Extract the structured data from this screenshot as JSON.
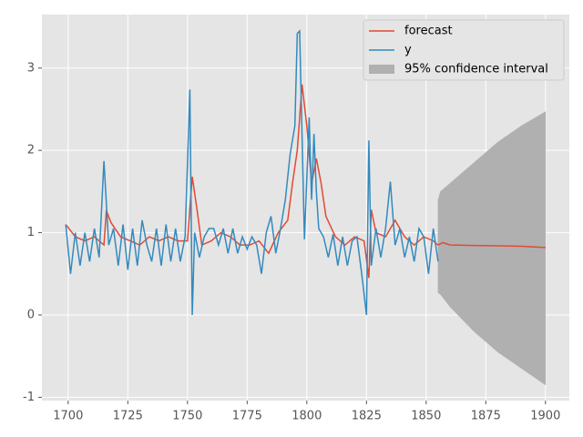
{
  "chart_data": {
    "type": "line",
    "xlim": [
      1689,
      1910
    ],
    "ylim": [
      -1.04,
      3.65
    ],
    "xticks": [
      1700,
      1725,
      1750,
      1775,
      1800,
      1825,
      1850,
      1875,
      1900
    ],
    "yticks": [
      -1,
      0,
      1,
      2,
      3
    ],
    "grid": true,
    "legend": "upper right",
    "series": [
      {
        "name": "forecast",
        "color": "#e24a33",
        "x": [
          1699,
          1703,
          1707,
          1711,
          1715,
          1716,
          1718,
          1722,
          1726,
          1730,
          1734,
          1738,
          1742,
          1746,
          1750,
          1752,
          1754,
          1756,
          1760,
          1764,
          1768,
          1772,
          1776,
          1780,
          1784,
          1788,
          1792,
          1794,
          1796,
          1798,
          1800,
          1802,
          1804,
          1806,
          1808,
          1812,
          1816,
          1820,
          1824,
          1826,
          1827,
          1829,
          1833,
          1837,
          1841,
          1845,
          1849,
          1853,
          1855,
          1857,
          1860,
          1870,
          1880,
          1890,
          1900
        ],
        "values": [
          1.1,
          0.95,
          0.9,
          0.95,
          0.85,
          1.27,
          1.12,
          0.95,
          0.9,
          0.85,
          0.95,
          0.9,
          0.95,
          0.9,
          0.9,
          1.68,
          1.28,
          0.85,
          0.9,
          1.0,
          0.95,
          0.85,
          0.85,
          0.9,
          0.75,
          1.0,
          1.15,
          1.6,
          2.0,
          2.8,
          2.3,
          1.6,
          1.9,
          1.6,
          1.2,
          0.95,
          0.85,
          0.95,
          0.9,
          0.45,
          1.28,
          1.0,
          0.95,
          1.15,
          0.95,
          0.85,
          0.95,
          0.9,
          0.85,
          0.88,
          0.85,
          0.845,
          0.84,
          0.835,
          0.82
        ]
      },
      {
        "name": "y",
        "color": "#348abd",
        "x": [
          1699,
          1701,
          1703,
          1705,
          1707,
          1709,
          1711,
          1713,
          1715,
          1717,
          1719,
          1721,
          1723,
          1725,
          1727,
          1729,
          1731,
          1733,
          1735,
          1737,
          1739,
          1741,
          1743,
          1745,
          1747,
          1749,
          1751,
          1752,
          1753,
          1755,
          1757,
          1759,
          1761,
          1763,
          1765,
          1767,
          1769,
          1771,
          1773,
          1775,
          1777,
          1779,
          1781,
          1783,
          1785,
          1787,
          1789,
          1791,
          1793,
          1795,
          1796,
          1797,
          1799,
          1801,
          1802,
          1803,
          1804,
          1805,
          1807,
          1809,
          1811,
          1813,
          1815,
          1817,
          1819,
          1821,
          1823,
          1825,
          1826,
          1827,
          1829,
          1831,
          1833,
          1835,
          1837,
          1839,
          1841,
          1843,
          1845,
          1847,
          1849,
          1851,
          1853,
          1855
        ],
        "values": [
          1.1,
          0.5,
          1.0,
          0.6,
          1.0,
          0.65,
          1.05,
          0.7,
          1.87,
          0.85,
          1.05,
          0.6,
          1.1,
          0.55,
          1.05,
          0.6,
          1.15,
          0.85,
          0.65,
          1.05,
          0.6,
          1.1,
          0.65,
          1.05,
          0.65,
          0.95,
          2.74,
          0.0,
          1.0,
          0.7,
          0.95,
          1.05,
          1.05,
          0.85,
          1.05,
          0.75,
          1.05,
          0.75,
          0.95,
          0.8,
          0.95,
          0.85,
          0.5,
          1.0,
          1.2,
          0.75,
          1.05,
          1.4,
          1.95,
          2.3,
          3.42,
          3.45,
          0.92,
          2.4,
          1.4,
          2.2,
          1.5,
          1.05,
          0.95,
          0.7,
          0.98,
          0.6,
          0.95,
          0.6,
          0.9,
          0.95,
          0.5,
          0.0,
          2.12,
          0.6,
          1.05,
          0.7,
          1.05,
          1.62,
          0.85,
          1.05,
          0.7,
          0.95,
          0.65,
          1.05,
          0.95,
          0.5,
          1.05,
          0.65
        ]
      }
    ],
    "interval": {
      "name": "95% confidence interval",
      "color": "#b0b0b0",
      "x": [
        1855,
        1856,
        1860,
        1870,
        1880,
        1890,
        1900
      ],
      "lower": [
        0.27,
        0.25,
        0.1,
        -0.2,
        -0.45,
        -0.65,
        -0.85
      ],
      "upper": [
        1.4,
        1.5,
        1.6,
        1.85,
        2.1,
        2.3,
        2.47
      ]
    }
  }
}
